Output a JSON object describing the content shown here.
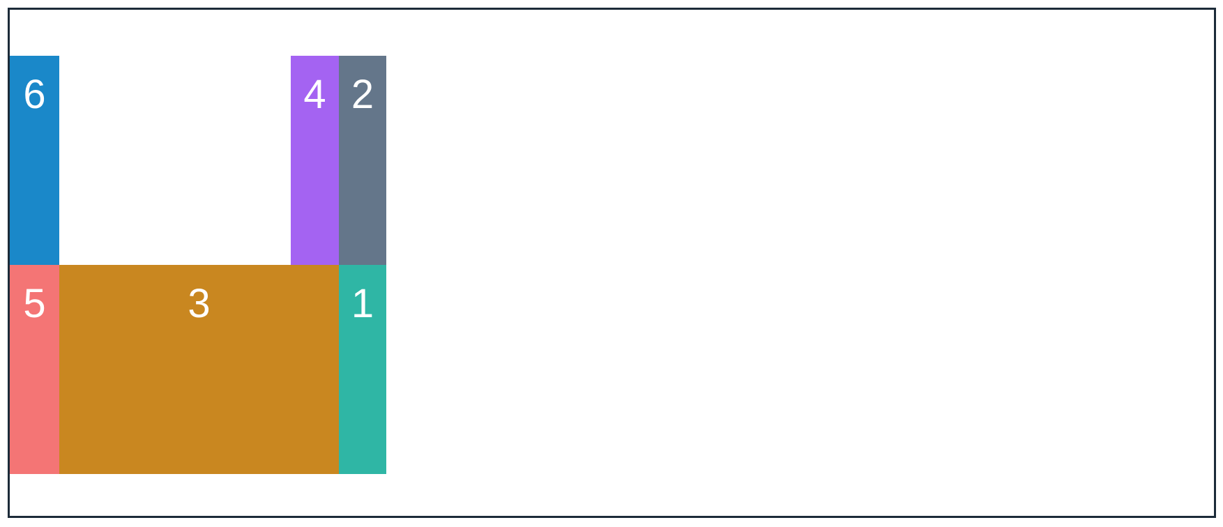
{
  "blocks": [
    {
      "id": "6",
      "label": "6",
      "color": "#1a88c9"
    },
    {
      "id": "4",
      "label": "4",
      "color": "#a463f2"
    },
    {
      "id": "2",
      "label": "2",
      "color": "#64768a"
    },
    {
      "id": "5",
      "label": "5",
      "color": "#f47575"
    },
    {
      "id": "3",
      "label": "3",
      "color": "#c98720"
    },
    {
      "id": "1",
      "label": "1",
      "color": "#2fb6a5"
    }
  ],
  "frame": {
    "border_color": "#1c2b39"
  }
}
